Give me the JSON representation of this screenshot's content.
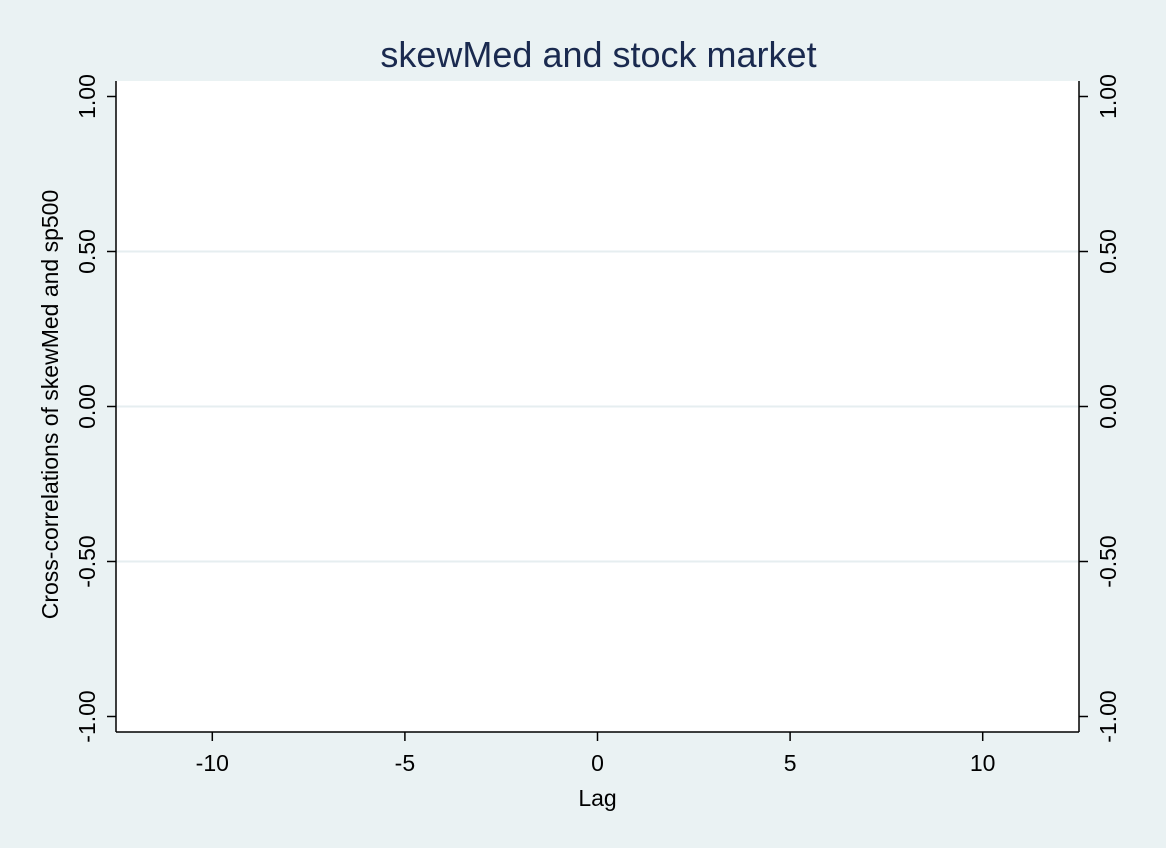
{
  "chart_data": {
    "type": "bar",
    "title": "skewMed and stock market",
    "xlabel": "Lag",
    "ylabel": "Cross-correlations of skewMed and sp500",
    "xlim": [
      -12.5,
      12.5
    ],
    "ylim": [
      -1.05,
      1.05
    ],
    "x_ticks": [
      -10,
      -5,
      0,
      5,
      10
    ],
    "x_tick_labels": [
      "-10",
      "-5",
      "0",
      "5",
      "10"
    ],
    "y_ticks": [
      -1,
      -0.5,
      0,
      0.5,
      1
    ],
    "y_tick_labels": [
      "-1.00",
      "-0.50",
      "0.00",
      "0.50",
      "1.00"
    ],
    "right_y_tick_labels": [
      "-1.00",
      "-0.50",
      "0.00",
      "0.50",
      "1.00"
    ],
    "series": [],
    "grid": true,
    "legend": "none",
    "colors": {
      "background": "#eaf2f3",
      "plot_background": "#ffffff",
      "gridline": "#e6eef0",
      "title": "#1a2a4f",
      "axis": "#000000"
    }
  }
}
